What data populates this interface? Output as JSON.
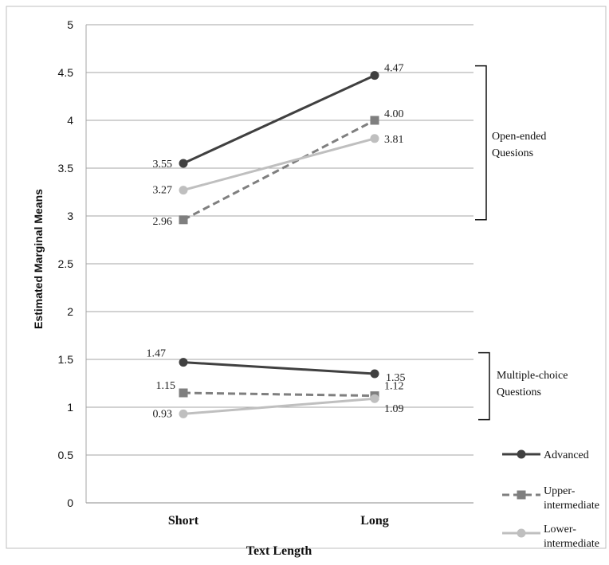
{
  "chart_data": {
    "type": "line",
    "categories": [
      "Short",
      "Long"
    ],
    "ylabel": "Estimated Marginal Means",
    "xlabel": "Text Length",
    "ylim": [
      0,
      5
    ],
    "ytick_step": 0.5,
    "yticks": [
      "0",
      "0.5",
      "1",
      "1.5",
      "2",
      "2.5",
      "3",
      "3.5",
      "4",
      "4.5",
      "5"
    ],
    "grid": true,
    "legend_position": "bottom-right",
    "series": [
      {
        "name": "Advanced",
        "group": "open",
        "values": [
          3.55,
          4.47
        ],
        "labels": [
          "3.55",
          "4.47"
        ],
        "color": "#404040",
        "dash": "solid",
        "marker": "circle"
      },
      {
        "name": "Upper-intermediate",
        "group": "open",
        "values": [
          2.96,
          4.0
        ],
        "labels": [
          "2.96",
          "4.00"
        ],
        "color": "#7f7f7f",
        "dash": "dashed",
        "marker": "square"
      },
      {
        "name": "Lower-intermediate",
        "group": "open",
        "values": [
          3.27,
          3.81
        ],
        "labels": [
          "3.27",
          "3.81"
        ],
        "color": "#bfbfbf",
        "dash": "solid",
        "marker": "circle"
      },
      {
        "name": "Advanced",
        "group": "mc",
        "values": [
          1.47,
          1.35
        ],
        "labels": [
          "1.47",
          "1.35"
        ],
        "color": "#404040",
        "dash": "solid",
        "marker": "circle"
      },
      {
        "name": "Upper-intermediate",
        "group": "mc",
        "values": [
          1.15,
          1.12
        ],
        "labels": [
          "1.15",
          "1.12"
        ],
        "color": "#7f7f7f",
        "dash": "dashed",
        "marker": "square"
      },
      {
        "name": "Lower-intermediate",
        "group": "mc",
        "values": [
          0.93,
          1.09
        ],
        "labels": [
          "0.93",
          "1.09"
        ],
        "color": "#bfbfbf",
        "dash": "solid",
        "marker": "circle"
      }
    ],
    "annotations": [
      {
        "id": "open",
        "lines": [
          "Open-ended",
          "Quesions"
        ],
        "yrange": [
          2.96,
          4.57
        ]
      },
      {
        "id": "mc",
        "lines": [
          "Multiple-choice",
          "Questions"
        ],
        "yrange": [
          0.87,
          1.57
        ]
      }
    ],
    "legend": [
      {
        "lines": [
          "Advanced"
        ],
        "color": "#404040",
        "dash": "solid",
        "marker": "circle"
      },
      {
        "lines": [
          "Upper-",
          "intermediate"
        ],
        "color": "#7f7f7f",
        "dash": "dashed",
        "marker": "square"
      },
      {
        "lines": [
          "Lower-",
          "intermediate"
        ],
        "color": "#bfbfbf",
        "dash": "solid",
        "marker": "circle"
      }
    ]
  }
}
